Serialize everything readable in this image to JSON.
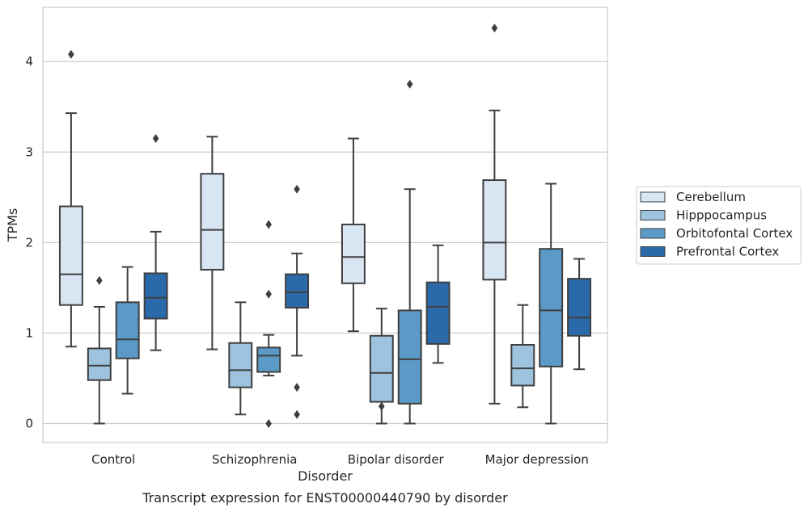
{
  "chart_data": {
    "type": "boxplot",
    "title": "",
    "caption": "Transcript expression for ENST00000440790 by disorder",
    "xlabel": "Disorder",
    "ylabel": "TPMs",
    "ylim": [
      -0.21,
      4.6
    ],
    "yticks": [
      0,
      1,
      2,
      3,
      4
    ],
    "grid": "horizontal",
    "legend_position": "right",
    "categories": [
      "Control",
      "Schizophrenia",
      "Bipolar disorder",
      "Major depression"
    ],
    "series": [
      {
        "name": "Cerebellum",
        "color": "#d8e6f4",
        "boxes": [
          {
            "whislo": 0.85,
            "q1": 1.31,
            "med": 1.65,
            "q3": 2.4,
            "whishi": 3.43,
            "fliers": [
              4.08
            ]
          },
          {
            "whislo": 0.82,
            "q1": 1.7,
            "med": 2.14,
            "q3": 2.76,
            "whishi": 3.17,
            "fliers": []
          },
          {
            "whislo": 1.02,
            "q1": 1.55,
            "med": 1.84,
            "q3": 2.2,
            "whishi": 3.15,
            "fliers": []
          },
          {
            "whislo": 0.22,
            "q1": 1.59,
            "med": 2.0,
            "q3": 2.69,
            "whishi": 3.46,
            "fliers": [
              4.37
            ]
          }
        ]
      },
      {
        "name": "Hipppocampus",
        "color": "#9dc3df",
        "boxes": [
          {
            "whislo": 0.0,
            "q1": 0.48,
            "med": 0.64,
            "q3": 0.83,
            "whishi": 1.29,
            "fliers": [
              1.58
            ]
          },
          {
            "whislo": 0.1,
            "q1": 0.4,
            "med": 0.59,
            "q3": 0.89,
            "whishi": 1.34,
            "fliers": []
          },
          {
            "whislo": 0.0,
            "q1": 0.24,
            "med": 0.56,
            "q3": 0.97,
            "whishi": 1.27,
            "fliers": [
              0.19
            ]
          },
          {
            "whislo": 0.18,
            "q1": 0.42,
            "med": 0.61,
            "q3": 0.87,
            "whishi": 1.31,
            "fliers": []
          }
        ]
      },
      {
        "name": "Orbitofontal Cortex",
        "color": "#5b9ac7",
        "boxes": [
          {
            "whislo": 0.33,
            "q1": 0.72,
            "med": 0.93,
            "q3": 1.34,
            "whishi": 1.73,
            "fliers": []
          },
          {
            "whislo": 0.53,
            "q1": 0.57,
            "med": 0.75,
            "q3": 0.84,
            "whishi": 0.98,
            "fliers": [
              2.2,
              1.43,
              0.0
            ]
          },
          {
            "whislo": 0.0,
            "q1": 0.22,
            "med": 0.71,
            "q3": 1.25,
            "whishi": 2.59,
            "fliers": [
              3.75
            ]
          },
          {
            "whislo": 0.0,
            "q1": 0.63,
            "med": 1.25,
            "q3": 1.93,
            "whishi": 2.65,
            "fliers": []
          }
        ]
      },
      {
        "name": "Prefrontal Cortex",
        "color": "#2a6aaa",
        "boxes": [
          {
            "whislo": 0.81,
            "q1": 1.16,
            "med": 1.39,
            "q3": 1.66,
            "whishi": 2.12,
            "fliers": [
              3.15
            ]
          },
          {
            "whislo": 0.75,
            "q1": 1.28,
            "med": 1.45,
            "q3": 1.65,
            "whishi": 1.88,
            "fliers": [
              2.59,
              0.4,
              0.1
            ]
          },
          {
            "whislo": 0.67,
            "q1": 0.88,
            "med": 1.29,
            "q3": 1.56,
            "whishi": 1.97,
            "fliers": []
          },
          {
            "whislo": 0.6,
            "q1": 0.97,
            "med": 1.17,
            "q3": 1.6,
            "whishi": 1.82,
            "fliers": []
          }
        ]
      }
    ]
  }
}
